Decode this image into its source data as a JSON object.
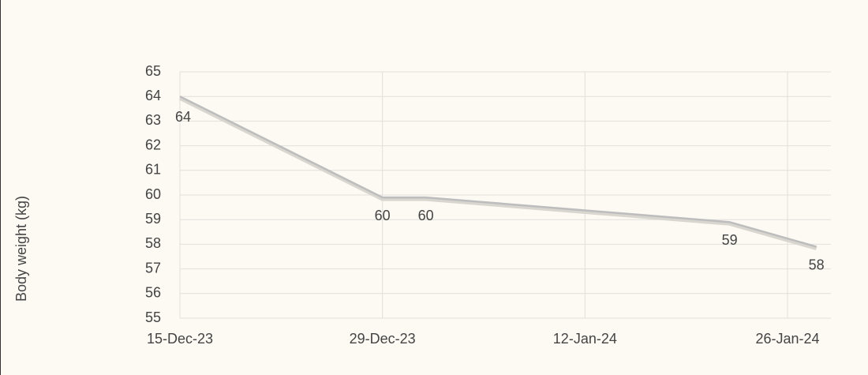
{
  "chart_data": {
    "type": "line",
    "y_label": "Body weight (kg)",
    "x": [
      "2023-12-15",
      "2023-12-29",
      "2024-01-01",
      "2024-01-22",
      "2024-01-28"
    ],
    "series": [
      {
        "color": "#bdbdbd",
        "values": [
          64,
          59.9,
          59.9,
          58.9,
          57.9
        ],
        "value_labels": [
          "64",
          "60",
          "60",
          "59",
          "58"
        ]
      }
    ],
    "xlim": [
      "2023-12-15",
      "2024-01-29"
    ],
    "xticks": [
      {
        "value": "2023-12-15",
        "label": "15-Dec-23"
      },
      {
        "value": "2023-12-29",
        "label": "29-Dec-23"
      },
      {
        "value": "2024-01-12",
        "label": "12-Jan-24"
      },
      {
        "value": "2024-01-26",
        "label": "26-Jan-24"
      }
    ],
    "ylim": [
      55,
      65
    ],
    "yticks": [
      55,
      56,
      57,
      58,
      59,
      60,
      61,
      62,
      63,
      64,
      65
    ],
    "grid": true
  }
}
